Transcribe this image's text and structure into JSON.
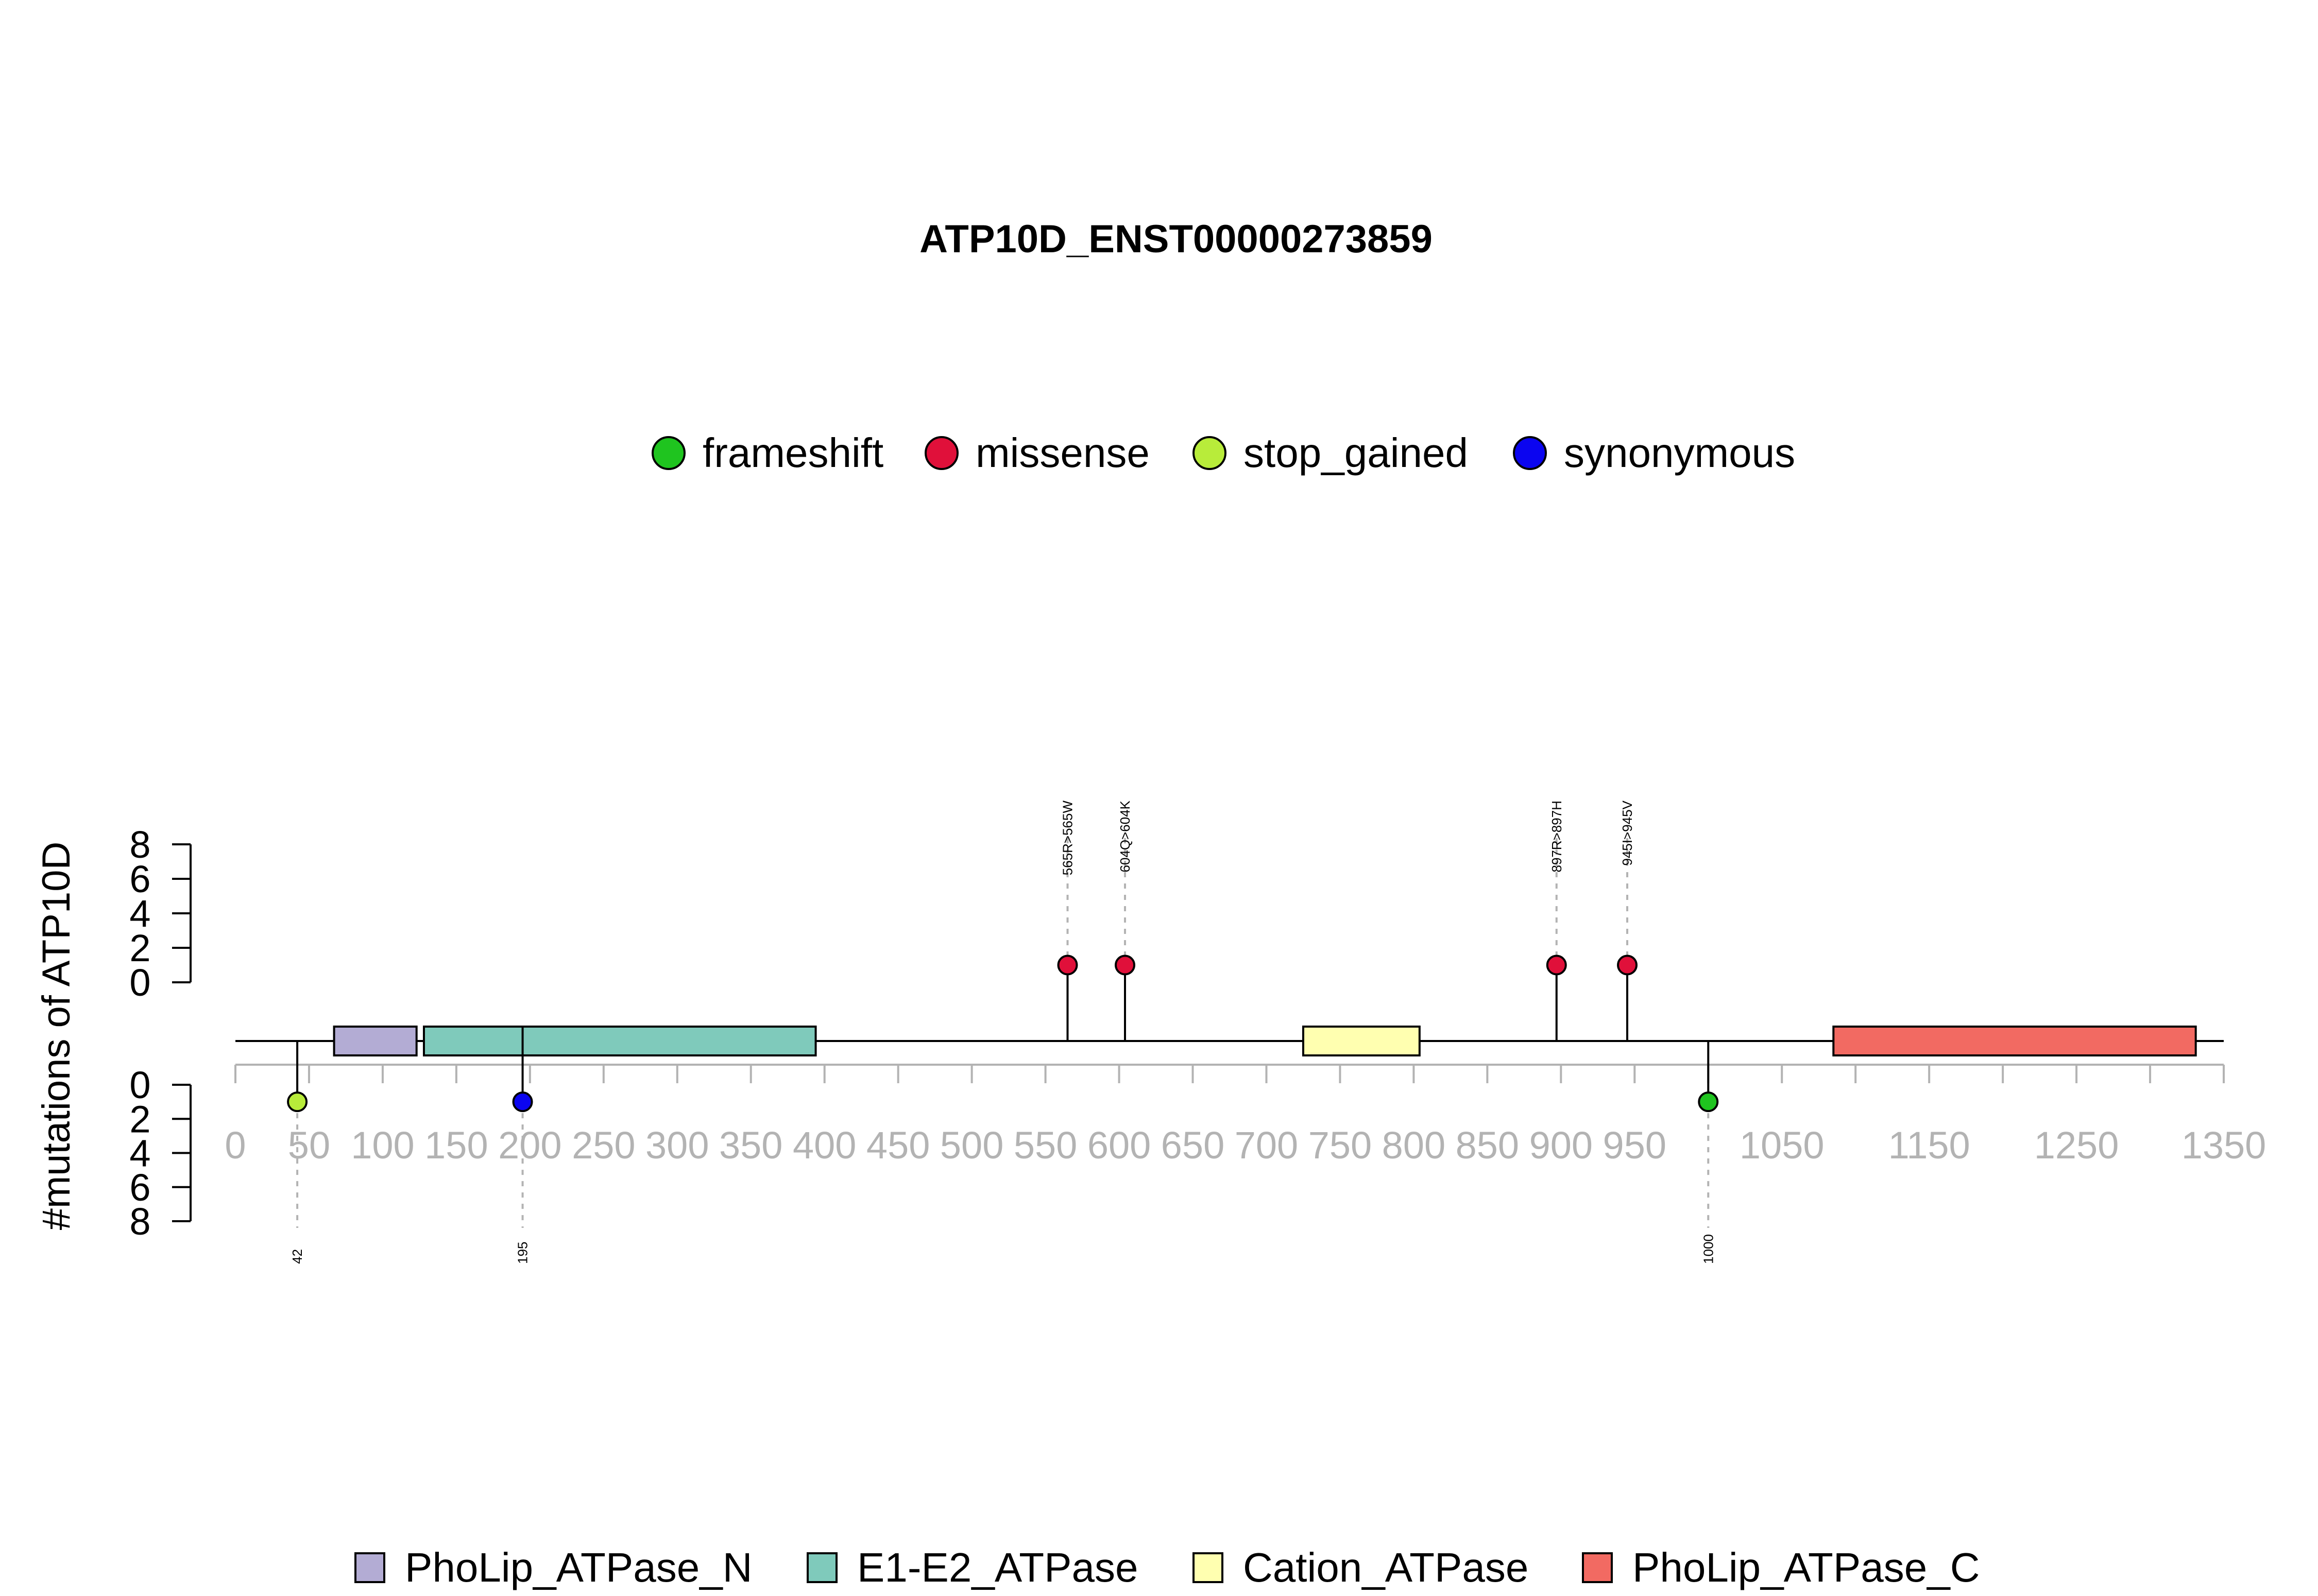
{
  "chart_data": {
    "type": "lollipop",
    "title": "ATP10D_ENST00000273859",
    "ylabel": "#mutations of ATP10D",
    "protein_length": 1350,
    "xlim": [
      0,
      1350
    ],
    "x_ticks": [
      0,
      50,
      100,
      150,
      200,
      250,
      300,
      350,
      400,
      450,
      500,
      550,
      600,
      650,
      700,
      750,
      800,
      850,
      900,
      950,
      1050,
      1150,
      1250,
      1350
    ],
    "x_tick_labels": [
      "0",
      "50",
      "100",
      "150",
      "200",
      "250",
      "300",
      "350",
      "400",
      "450",
      "500",
      "550",
      "600",
      "650",
      "700",
      "750",
      "800",
      "850",
      "900",
      "950",
      "1050",
      "1150",
      "1250",
      "1350"
    ],
    "x_minor_ticks": [
      1000,
      1100,
      1200,
      1300
    ],
    "y_ticks_top": [
      "8",
      "6",
      "4",
      "2",
      "0"
    ],
    "y_ticks_bottom": [
      "0",
      "2",
      "4",
      "6",
      "8"
    ],
    "ylim": [
      0,
      8
    ],
    "mutation_legend": [
      {
        "name": "frameshift",
        "color": "#1fc41f"
      },
      {
        "name": "missense",
        "color": "#e0103a"
      },
      {
        "name": "stop_gained",
        "color": "#b8ec3a"
      },
      {
        "name": "synonymous",
        "color": "#0b05f0"
      }
    ],
    "domain_legend": [
      {
        "name": "PhoLip_ATPase_N",
        "color": "#b3acd4"
      },
      {
        "name": "E1-E2_ATPase",
        "color": "#7fcabb"
      },
      {
        "name": "Cation_ATPase",
        "color": "#ffffb0"
      },
      {
        "name": "PhoLip_ATPase_C",
        "color": "#f26a62"
      }
    ],
    "domains": [
      {
        "name": "PhoLip_ATPase_N",
        "start": 67,
        "end": 123
      },
      {
        "name": "E1-E2_ATPase",
        "start": 128,
        "end": 394
      },
      {
        "name": "Cation_ATPase",
        "start": 725,
        "end": 804
      },
      {
        "name": "PhoLip_ATPase_C",
        "start": 1085,
        "end": 1331
      }
    ],
    "mutations_top": [
      {
        "position": 565,
        "count": 1,
        "type": "missense",
        "label": "565R>565W"
      },
      {
        "position": 604,
        "count": 1,
        "type": "missense",
        "label": "604Q>604K"
      },
      {
        "position": 897,
        "count": 1,
        "type": "missense",
        "label": "897R>897H"
      },
      {
        "position": 945,
        "count": 1,
        "type": "missense",
        "label": "945I>945V"
      }
    ],
    "mutations_bottom": [
      {
        "position": 42,
        "count": 1,
        "type": "stop_gained",
        "label": "42"
      },
      {
        "position": 195,
        "count": 1,
        "type": "synonymous",
        "label": "195"
      },
      {
        "position": 1000,
        "count": 1,
        "type": "frameshift",
        "label": "1000"
      }
    ]
  }
}
